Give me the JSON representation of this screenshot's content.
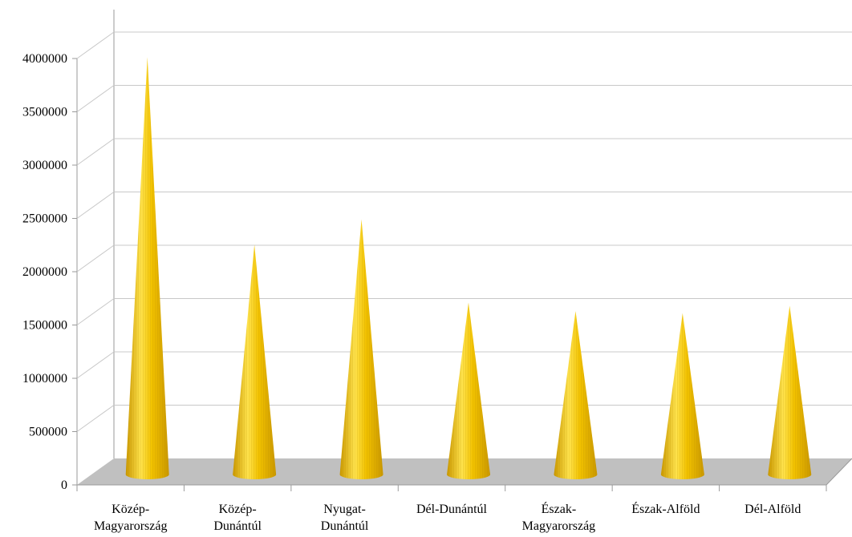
{
  "chart_data": {
    "type": "bar",
    "bar_shape": "3d-cone",
    "categories": [
      [
        "Közép-",
        "Magyarország"
      ],
      [
        "Közép-",
        "Dunántúl"
      ],
      [
        "Nyugat-",
        "Dunántúl"
      ],
      [
        "Dél-Dunántúl"
      ],
      [
        "Észak-",
        "Magyarország"
      ],
      [
        "Észak-Alföld"
      ],
      [
        "Dél-Alföld"
      ]
    ],
    "values": [
      3960000,
      2180000,
      2420000,
      1630000,
      1550000,
      1530000,
      1600000
    ],
    "ylim": [
      0,
      4000000
    ],
    "yticks": [
      "0",
      "500000",
      "1000000",
      "1500000",
      "2000000",
      "2500000",
      "3000000",
      "3500000",
      "4000000"
    ],
    "title": "",
    "xlabel": "",
    "ylabel": "",
    "grid": true,
    "colors": {
      "cone_light": "#ffe34d",
      "cone_mid": "#f2c200",
      "cone_dark": "#c99700",
      "floor": "#c0c0c0",
      "grid": "#c8c8c8",
      "axis": "#9a9a9a"
    }
  }
}
